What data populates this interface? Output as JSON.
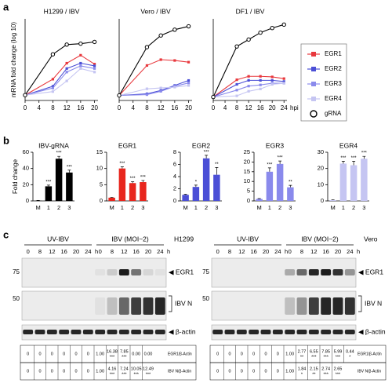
{
  "panels": [
    "a",
    "b",
    "c"
  ],
  "chart_data": [
    {
      "type": "line",
      "title": "H1299 / IBV",
      "ylabel": "mRNA fold change (log 10)",
      "x": [
        0,
        8,
        12,
        16,
        20
      ],
      "xlim": [
        0,
        21
      ],
      "xticks": [
        0,
        4,
        8,
        12,
        16,
        20
      ],
      "ylim": [
        -0.3,
        4.3
      ],
      "series": [
        {
          "name": "EGR1",
          "color": "#e8383d",
          "marker": "square",
          "values": [
            0,
            0.9,
            1.8,
            2.25,
            1.75
          ]
        },
        {
          "name": "EGR2",
          "color": "#4b4fd6",
          "marker": "square",
          "values": [
            0,
            0.5,
            1.5,
            1.8,
            1.65
          ]
        },
        {
          "name": "EGR3",
          "color": "#8a8aec",
          "marker": "square",
          "values": [
            0,
            0.4,
            1.3,
            1.65,
            1.5
          ]
        },
        {
          "name": "EGR4",
          "color": "#c5c5f2",
          "marker": "square",
          "values": [
            0,
            0.2,
            0.8,
            1.5,
            1.3
          ]
        },
        {
          "name": "gRNA",
          "color": "#000000",
          "marker": "open-circle",
          "values": [
            0,
            2.3,
            2.85,
            2.9,
            3.0
          ]
        }
      ]
    },
    {
      "type": "line",
      "title": "Vero / IBV",
      "x": [
        0,
        8,
        12,
        16,
        20
      ],
      "xlim": [
        0,
        21
      ],
      "xticks": [
        0,
        4,
        8,
        12,
        16,
        20
      ],
      "ylim": [
        -0.3,
        4.6
      ],
      "series": [
        {
          "color": "#e8383d",
          "marker": "square",
          "values": [
            0,
            1.8,
            2.15,
            2.1,
            2.0
          ]
        },
        {
          "color": "#4b4fd6",
          "marker": "square",
          "values": [
            0,
            0.1,
            0.3,
            0.6,
            0.9
          ]
        },
        {
          "color": "#8a8aec",
          "marker": "square",
          "values": [
            0,
            0.05,
            0.25,
            0.55,
            0.75
          ]
        },
        {
          "color": "#c5c5f2",
          "marker": "square",
          "values": [
            0,
            0.4,
            0.45,
            0.5,
            0.6
          ]
        },
        {
          "color": "#000000",
          "marker": "open-circle",
          "values": [
            0,
            2.9,
            3.6,
            3.95,
            4.15
          ]
        }
      ]
    },
    {
      "type": "line",
      "title": "DF1 / IBV",
      "xlabel": "hpi",
      "x": [
        0,
        8,
        12,
        16,
        20,
        24
      ],
      "xlim": [
        0,
        25
      ],
      "xticks": [
        0,
        4,
        8,
        12,
        16,
        20,
        24
      ],
      "ylim": [
        -0.3,
        6.8
      ],
      "series": [
        {
          "color": "#e8383d",
          "marker": "square",
          "values": [
            0,
            1.5,
            1.8,
            1.8,
            1.75,
            1.6
          ]
        },
        {
          "color": "#4b4fd6",
          "marker": "square",
          "values": [
            0,
            1.1,
            1.45,
            1.45,
            1.45,
            1.35
          ]
        },
        {
          "color": "#8a8aec",
          "marker": "square",
          "values": [
            0,
            0.6,
            0.95,
            1.05,
            1.2,
            1.2
          ]
        },
        {
          "color": "#c5c5f2",
          "marker": "square",
          "values": [
            0,
            0.1,
            0.5,
            0.7,
            1.1,
            1.2
          ]
        },
        {
          "color": "#000000",
          "marker": "open-circle",
          "values": [
            0,
            4.4,
            5.0,
            5.6,
            6.0,
            6.3
          ]
        }
      ]
    },
    {
      "type": "bar",
      "title": "IBV-gRNA",
      "ylabel": "Fold change",
      "color": "#000000",
      "categories": [
        "M",
        "1",
        "2",
        "3"
      ],
      "values": [
        0.3,
        18,
        52,
        35
      ],
      "errors": [
        0.3,
        1.5,
        3,
        3
      ],
      "annotations": [
        null,
        "***",
        "***",
        "***"
      ],
      "ylim": [
        0,
        60
      ],
      "yticks": [
        0,
        20,
        40,
        60
      ]
    },
    {
      "type": "bar",
      "title": "EGR1",
      "color": "#e8261d",
      "categories": [
        "M",
        "1",
        "2",
        "3"
      ],
      "values": [
        1,
        10,
        5.5,
        5.8
      ],
      "errors": [
        0.1,
        0.5,
        0.4,
        0.5
      ],
      "annotations": [
        null,
        "***",
        "***",
        "***"
      ],
      "ylim": [
        0,
        15
      ],
      "yticks": [
        0,
        5,
        10,
        15
      ]
    },
    {
      "type": "bar",
      "title": "EGR2",
      "color": "#4b4fd6",
      "categories": [
        "M",
        "1",
        "2",
        "3"
      ],
      "values": [
        1,
        2.3,
        7,
        4.3
      ],
      "errors": [
        0.1,
        0.3,
        0.5,
        1.2
      ],
      "annotations": [
        null,
        "*",
        "***",
        "**"
      ],
      "ylim": [
        0,
        8
      ],
      "yticks": [
        0,
        2,
        4,
        6,
        8
      ]
    },
    {
      "type": "bar",
      "title": "EGR3",
      "color": "#8a8aec",
      "categories": [
        "M",
        "1",
        "2",
        "3"
      ],
      "values": [
        1,
        15,
        19,
        7
      ],
      "errors": [
        0.2,
        2,
        1.5,
        1
      ],
      "annotations": [
        null,
        "***",
        "***",
        "**"
      ],
      "ylim": [
        0,
        25
      ],
      "yticks": [
        0,
        5,
        10,
        15,
        20,
        25
      ]
    },
    {
      "type": "bar",
      "title": "EGR4",
      "color": "#c5c5f2",
      "categories": [
        "M",
        "1",
        "2",
        "3"
      ],
      "values": [
        0.5,
        23,
        22,
        26
      ],
      "errors": [
        0.2,
        1.5,
        2.5,
        1.5
      ],
      "annotations": [
        null,
        "***",
        "***",
        "***"
      ],
      "ylim": [
        0,
        30
      ],
      "yticks": [
        0,
        10,
        20,
        30
      ]
    }
  ],
  "blots": [
    {
      "cell": "H1299",
      "groups": [
        "UV-IBV",
        "IBV (MOI~2)"
      ],
      "lanes": [
        "0",
        "8",
        "12",
        "16",
        "20",
        "24"
      ],
      "unit": "h",
      "markers": [
        "75",
        "50"
      ],
      "targets": [
        "EGR1",
        "IBV N",
        "β-actin"
      ],
      "rows": [
        {
          "label": "EGR1/β-Actin",
          "cells": [
            {
              "value": "0"
            },
            {
              "value": "0"
            },
            {
              "value": "0"
            },
            {
              "value": "0"
            },
            {
              "value": "0"
            },
            {
              "value": "0"
            },
            {
              "value": "1.00"
            },
            {
              "value": "16.38",
              "sig": "***"
            },
            {
              "value": "7.85",
              "sig": "***"
            },
            {
              "value": "0.00"
            },
            {
              "value": "0.00"
            }
          ]
        },
        {
          "label": "IBV N/β-Actin",
          "cells": [
            {
              "value": "0"
            },
            {
              "value": "0"
            },
            {
              "value": "0"
            },
            {
              "value": "0"
            },
            {
              "value": "0"
            },
            {
              "value": "0"
            },
            {
              "value": "1.00"
            },
            {
              "value": "4.16",
              "sig": "***"
            },
            {
              "value": "7.24",
              "sig": "***"
            },
            {
              "value": "10.05",
              "sig": "***"
            },
            {
              "value": "12.49",
              "sig": "***"
            }
          ]
        }
      ]
    },
    {
      "cell": "Vero",
      "groups": [
        "UV-IBV",
        "IBV (MOI~2)"
      ],
      "lanes": [
        "0",
        "8",
        "12",
        "16",
        "20",
        "24"
      ],
      "unit": "h",
      "markers": [
        "75",
        "50"
      ],
      "targets": [
        "EGR1",
        "IBV N",
        "β-actin"
      ],
      "rows": [
        {
          "label": "EGR1/β-Actin",
          "cells": [
            {
              "value": "0"
            },
            {
              "value": "0"
            },
            {
              "value": "0"
            },
            {
              "value": "0"
            },
            {
              "value": "0"
            },
            {
              "value": "0"
            },
            {
              "value": "1.00"
            },
            {
              "value": "2.77",
              "sig": "**"
            },
            {
              "value": "6.55",
              "sig": "***"
            },
            {
              "value": "7.85",
              "sig": "***"
            },
            {
              "value": "5.99",
              "sig": "***"
            },
            {
              "value": "0.44",
              "sig": "*"
            }
          ]
        },
        {
          "label": "IBV N/β-Actin",
          "cells": [
            {
              "value": "0"
            },
            {
              "value": "0"
            },
            {
              "value": "0"
            },
            {
              "value": "0"
            },
            {
              "value": "0"
            },
            {
              "value": "0"
            },
            {
              "value": "1.00"
            },
            {
              "value": "1.84",
              "sig": "*"
            },
            {
              "value": "2.15",
              "sig": "**"
            },
            {
              "value": "2.74",
              "sig": "***"
            },
            {
              "value": "2.65",
              "sig": "***"
            }
          ]
        }
      ]
    }
  ]
}
